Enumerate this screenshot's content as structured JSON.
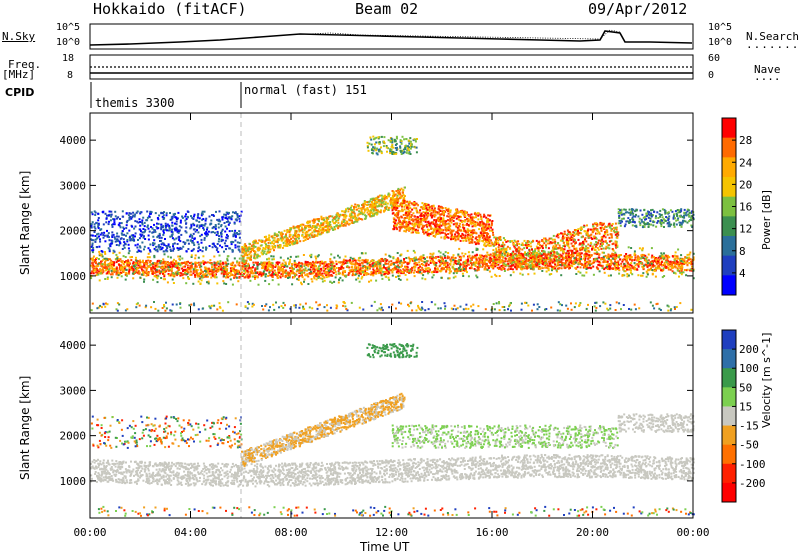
{
  "header": {
    "radar": "Hokkaido (fitACF)",
    "beam": "Beam 02",
    "date": "09/Apr/2012"
  },
  "labels": {
    "n_sky": "N.Sky",
    "n_search": "N.Search",
    "freq": "Freq.",
    "freq_unit": "[MHz]",
    "nave": "Nave",
    "cpid": "CPID"
  },
  "noise_axis": {
    "left_ticks": [
      "10^5",
      "10^0"
    ],
    "right_ticks": [
      "10^5",
      "10^0"
    ]
  },
  "freq_axis": {
    "left_ticks": [
      "18",
      "8"
    ],
    "right_ticks": [
      "60",
      "0"
    ]
  },
  "cpid_segments": [
    {
      "label": "themis 3300",
      "start_hour": 0
    },
    {
      "label": "normal (fast) 151",
      "start_hour": 6
    }
  ],
  "chart_data": [
    {
      "type": "heatmap",
      "name": "Power",
      "ylabel": "Slant Range [km]",
      "xlabel": "Time UT",
      "y_ticks": [
        "1000",
        "2000",
        "3000",
        "4000"
      ],
      "ylim": [
        180,
        4600
      ],
      "xlim_hours": [
        0,
        24
      ],
      "x_ticks": [
        "00:00",
        "04:00",
        "08:00",
        "12:00",
        "16:00",
        "20:00",
        "00:00"
      ],
      "colorbar_label": "Power [dB]",
      "colorbar_ticks": [
        "28",
        "24",
        "20",
        "16",
        "12",
        "8",
        "4"
      ],
      "colorbar_colors": [
        "#ff0000",
        "#ff6a00",
        "#ffaa00",
        "#f5c400",
        "#7cc040",
        "#3b8f50",
        "#2a6f9a",
        "#1f3fbf",
        "#0000ff"
      ]
    },
    {
      "type": "heatmap",
      "name": "Velocity",
      "ylabel": "Slant Range [km]",
      "xlabel": "Time UT",
      "y_ticks": [
        "1000",
        "2000",
        "3000",
        "4000"
      ],
      "ylim": [
        180,
        4600
      ],
      "xlim_hours": [
        0,
        24
      ],
      "x_ticks": [
        "00:00",
        "04:00",
        "08:00",
        "12:00",
        "16:00",
        "20:00",
        "00:00"
      ],
      "colorbar_label": "Velocity [m s^-1]",
      "colorbar_ticks": [
        "200",
        "100",
        "50",
        "15",
        "-15",
        "-50",
        "-100",
        "-200"
      ],
      "colorbar_colors": [
        "#1f3fbf",
        "#2e6fa8",
        "#3a9a4a",
        "#7cd050",
        "#c8c8c0",
        "#f0a020",
        "#ff7000",
        "#ff2000",
        "#ff0000"
      ]
    }
  ]
}
